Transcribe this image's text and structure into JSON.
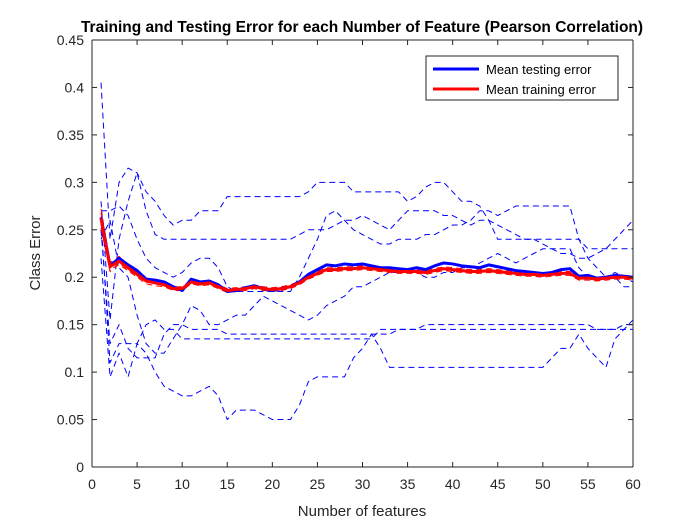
{
  "chart_data": {
    "type": "line",
    "title": "Training and Testing Error for each Number of Feature (Pearson Correlation)",
    "xlabel": "Number of features",
    "ylabel": "Class Error",
    "xlim": [
      0,
      60
    ],
    "ylim": [
      0,
      0.45
    ],
    "xticks": [
      0,
      5,
      10,
      15,
      20,
      25,
      30,
      35,
      40,
      45,
      50,
      55,
      60
    ],
    "yticks": [
      0,
      0.05,
      0.1,
      0.15,
      0.2,
      0.25,
      0.3,
      0.35,
      0.4,
      0.45
    ],
    "legend_position": "top-right",
    "grid": false,
    "colors": {
      "testing": "#0000ff",
      "training": "#ff0000"
    },
    "x": [
      1,
      2,
      3,
      4,
      5,
      6,
      7,
      8,
      9,
      10,
      11,
      12,
      13,
      14,
      15,
      16,
      17,
      18,
      19,
      20,
      21,
      22,
      23,
      24,
      25,
      26,
      27,
      28,
      29,
      30,
      31,
      32,
      33,
      34,
      35,
      36,
      37,
      38,
      39,
      40,
      41,
      42,
      43,
      44,
      45,
      46,
      47,
      48,
      49,
      50,
      51,
      52,
      53,
      54,
      55,
      56,
      57,
      58,
      59,
      60
    ],
    "series": [
      {
        "name": "Mean testing error",
        "style": "solid",
        "color": "#0000ff",
        "role": "mean",
        "values": [
          0.263,
          0.212,
          0.22,
          0.213,
          0.207,
          0.198,
          0.197,
          0.195,
          0.19,
          0.186,
          0.198,
          0.195,
          0.196,
          0.192,
          0.185,
          0.186,
          0.189,
          0.191,
          0.188,
          0.186,
          0.188,
          0.19,
          0.195,
          0.203,
          0.208,
          0.213,
          0.212,
          0.214,
          0.213,
          0.214,
          0.212,
          0.21,
          0.21,
          0.209,
          0.208,
          0.21,
          0.208,
          0.212,
          0.215,
          0.214,
          0.212,
          0.211,
          0.21,
          0.213,
          0.211,
          0.209,
          0.207,
          0.206,
          0.205,
          0.204,
          0.205,
          0.208,
          0.209,
          0.201,
          0.202,
          0.199,
          0.2,
          0.202,
          0.201,
          0.2
        ]
      },
      {
        "name": "Mean training error",
        "style": "solid",
        "color": "#ff0000",
        "role": "mean",
        "values": [
          0.262,
          0.211,
          0.217,
          0.21,
          0.203,
          0.196,
          0.194,
          0.192,
          0.188,
          0.188,
          0.195,
          0.193,
          0.194,
          0.19,
          0.186,
          0.187,
          0.188,
          0.19,
          0.188,
          0.187,
          0.188,
          0.19,
          0.194,
          0.2,
          0.204,
          0.208,
          0.208,
          0.209,
          0.209,
          0.21,
          0.209,
          0.208,
          0.207,
          0.206,
          0.206,
          0.206,
          0.205,
          0.207,
          0.209,
          0.208,
          0.207,
          0.206,
          0.206,
          0.207,
          0.206,
          0.205,
          0.204,
          0.203,
          0.203,
          0.202,
          0.203,
          0.204,
          0.204,
          0.199,
          0.199,
          0.198,
          0.199,
          0.2,
          0.2,
          0.199
        ]
      },
      {
        "style": "dashed",
        "color": "#0000ff",
        "role": "fold",
        "values": [
          0.405,
          0.24,
          0.3,
          0.315,
          0.31,
          0.29,
          0.28,
          0.265,
          0.255,
          0.26,
          0.26,
          0.27,
          0.27,
          0.27,
          0.285,
          0.285,
          0.285,
          0.285,
          0.285,
          0.285,
          0.285,
          0.285,
          0.285,
          0.29,
          0.3,
          0.3,
          0.3,
          0.3,
          0.29,
          0.29,
          0.29,
          0.29,
          0.29,
          0.29,
          0.28,
          0.285,
          0.295,
          0.3,
          0.3,
          0.29,
          0.28,
          0.28,
          0.275,
          0.26,
          0.24,
          0.24,
          0.24,
          0.24,
          0.24,
          0.24,
          0.24,
          0.24,
          0.24,
          0.24,
          0.23,
          0.23,
          0.23,
          0.23,
          0.23,
          0.23
        ]
      },
      {
        "style": "dashed",
        "color": "#0000ff",
        "role": "fold",
        "values": [
          0.26,
          0.11,
          0.13,
          0.13,
          0.13,
          0.15,
          0.155,
          0.145,
          0.145,
          0.135,
          0.135,
          0.135,
          0.135,
          0.135,
          0.135,
          0.135,
          0.135,
          0.135,
          0.135,
          0.135,
          0.135,
          0.135,
          0.135,
          0.135,
          0.135,
          0.135,
          0.135,
          0.135,
          0.135,
          0.135,
          0.135,
          0.145,
          0.145,
          0.145,
          0.145,
          0.145,
          0.145,
          0.145,
          0.145,
          0.145,
          0.145,
          0.145,
          0.145,
          0.145,
          0.145,
          0.145,
          0.145,
          0.145,
          0.145,
          0.145,
          0.145,
          0.145,
          0.145,
          0.145,
          0.145,
          0.145,
          0.145,
          0.145,
          0.145,
          0.145
        ]
      },
      {
        "style": "dashed",
        "color": "#0000ff",
        "role": "fold",
        "values": [
          0.22,
          0.095,
          0.12,
          0.095,
          0.13,
          0.12,
          0.1,
          0.085,
          0.08,
          0.075,
          0.075,
          0.08,
          0.085,
          0.075,
          0.05,
          0.06,
          0.06,
          0.06,
          0.055,
          0.05,
          0.05,
          0.05,
          0.065,
          0.09,
          0.095,
          0.095,
          0.095,
          0.095,
          0.115,
          0.125,
          0.14,
          0.125,
          0.105,
          0.105,
          0.105,
          0.105,
          0.105,
          0.105,
          0.105,
          0.105,
          0.105,
          0.105,
          0.105,
          0.105,
          0.105,
          0.105,
          0.105,
          0.105,
          0.105,
          0.105,
          0.115,
          0.125,
          0.125,
          0.14,
          0.125,
          0.115,
          0.105,
          0.135,
          0.145,
          0.155
        ]
      },
      {
        "style": "dashed",
        "color": "#0000ff",
        "role": "fold",
        "values": [
          0.28,
          0.155,
          0.24,
          0.28,
          0.31,
          0.27,
          0.245,
          0.24,
          0.24,
          0.24,
          0.24,
          0.24,
          0.24,
          0.24,
          0.24,
          0.24,
          0.24,
          0.24,
          0.24,
          0.24,
          0.24,
          0.24,
          0.245,
          0.25,
          0.25,
          0.25,
          0.255,
          0.26,
          0.26,
          0.265,
          0.26,
          0.255,
          0.25,
          0.26,
          0.27,
          0.27,
          0.27,
          0.27,
          0.265,
          0.265,
          0.26,
          0.255,
          0.26,
          0.26,
          0.255,
          0.25,
          0.245,
          0.24,
          0.24,
          0.235,
          0.23,
          0.225,
          0.225,
          0.22,
          0.22,
          0.225,
          0.23,
          0.24,
          0.25,
          0.26
        ]
      },
      {
        "style": "dashed",
        "color": "#0000ff",
        "role": "fold",
        "values": [
          0.27,
          0.27,
          0.275,
          0.265,
          0.24,
          0.22,
          0.21,
          0.205,
          0.2,
          0.205,
          0.215,
          0.22,
          0.22,
          0.21,
          0.19,
          0.185,
          0.185,
          0.185,
          0.185,
          0.185,
          0.185,
          0.185,
          0.2,
          0.22,
          0.24,
          0.265,
          0.27,
          0.26,
          0.25,
          0.245,
          0.24,
          0.235,
          0.235,
          0.24,
          0.24,
          0.24,
          0.245,
          0.245,
          0.25,
          0.255,
          0.255,
          0.26,
          0.27,
          0.27,
          0.265,
          0.27,
          0.275,
          0.275,
          0.275,
          0.275,
          0.275,
          0.275,
          0.275,
          0.24,
          0.22,
          0.21,
          0.2,
          0.2,
          0.19,
          0.19
        ]
      },
      {
        "style": "dashed",
        "color": "#0000ff",
        "role": "fold",
        "values": [
          0.24,
          0.26,
          0.21,
          0.2,
          0.16,
          0.13,
          0.12,
          0.12,
          0.135,
          0.15,
          0.17,
          0.165,
          0.15,
          0.15,
          0.155,
          0.16,
          0.16,
          0.17,
          0.18,
          0.175,
          0.17,
          0.165,
          0.16,
          0.155,
          0.16,
          0.17,
          0.175,
          0.18,
          0.19,
          0.19,
          0.195,
          0.2,
          0.205,
          0.205,
          0.205,
          0.205,
          0.2,
          0.2,
          0.205,
          0.205,
          0.21,
          0.21,
          0.215,
          0.22,
          0.225,
          0.22,
          0.215,
          0.22,
          0.225,
          0.23,
          0.23,
          0.23,
          0.23,
          0.21,
          0.2,
          0.2,
          0.2,
          0.205,
          0.2,
          0.195
        ]
      },
      {
        "style": "dashed",
        "color": "#0000ff",
        "role": "fold",
        "values": [
          0.25,
          0.13,
          0.15,
          0.125,
          0.115,
          0.115,
          0.115,
          0.14,
          0.15,
          0.15,
          0.145,
          0.145,
          0.145,
          0.145,
          0.14,
          0.14,
          0.14,
          0.14,
          0.14,
          0.14,
          0.14,
          0.14,
          0.14,
          0.14,
          0.14,
          0.14,
          0.14,
          0.14,
          0.14,
          0.14,
          0.14,
          0.14,
          0.14,
          0.145,
          0.145,
          0.145,
          0.15,
          0.15,
          0.15,
          0.15,
          0.15,
          0.15,
          0.15,
          0.15,
          0.15,
          0.15,
          0.15,
          0.15,
          0.15,
          0.15,
          0.15,
          0.15,
          0.15,
          0.15,
          0.15,
          0.145,
          0.145,
          0.145,
          0.15,
          0.15
        ]
      },
      {
        "style": "dashed",
        "color": "#ff0000",
        "role": "fold",
        "values": [
          0.268,
          0.214,
          0.222,
          0.213,
          0.205,
          0.198,
          0.196,
          0.194,
          0.19,
          0.19,
          0.197,
          0.195,
          0.196,
          0.192,
          0.188,
          0.189,
          0.19,
          0.192,
          0.19,
          0.189,
          0.19,
          0.192,
          0.196,
          0.202,
          0.206,
          0.21,
          0.21,
          0.211,
          0.211,
          0.212,
          0.211,
          0.21,
          0.209,
          0.208,
          0.208,
          0.208,
          0.207,
          0.209,
          0.211,
          0.21,
          0.209,
          0.208,
          0.208,
          0.209,
          0.208,
          0.207,
          0.206,
          0.205,
          0.205,
          0.204,
          0.205,
          0.206,
          0.206,
          0.201,
          0.201,
          0.2,
          0.201,
          0.202,
          0.202,
          0.201
        ]
      },
      {
        "style": "dashed",
        "color": "#ff0000",
        "role": "fold",
        "values": [
          0.256,
          0.208,
          0.213,
          0.207,
          0.2,
          0.193,
          0.191,
          0.19,
          0.186,
          0.186,
          0.193,
          0.191,
          0.192,
          0.188,
          0.184,
          0.185,
          0.186,
          0.188,
          0.186,
          0.185,
          0.186,
          0.188,
          0.192,
          0.198,
          0.202,
          0.206,
          0.206,
          0.207,
          0.207,
          0.208,
          0.207,
          0.206,
          0.205,
          0.204,
          0.204,
          0.204,
          0.203,
          0.205,
          0.207,
          0.206,
          0.205,
          0.204,
          0.204,
          0.205,
          0.204,
          0.203,
          0.202,
          0.201,
          0.201,
          0.2,
          0.201,
          0.202,
          0.202,
          0.197,
          0.197,
          0.196,
          0.197,
          0.198,
          0.198,
          0.197
        ]
      },
      {
        "style": "dashed",
        "color": "#ff0000",
        "role": "fold",
        "values": [
          0.272,
          0.216,
          0.219,
          0.212,
          0.206,
          0.197,
          0.195,
          0.191,
          0.187,
          0.186,
          0.196,
          0.194,
          0.193,
          0.19,
          0.187,
          0.188,
          0.187,
          0.191,
          0.187,
          0.186,
          0.187,
          0.191,
          0.195,
          0.199,
          0.205,
          0.209,
          0.207,
          0.21,
          0.21,
          0.209,
          0.21,
          0.209,
          0.206,
          0.207,
          0.205,
          0.207,
          0.206,
          0.208,
          0.21,
          0.207,
          0.208,
          0.207,
          0.205,
          0.208,
          0.207,
          0.206,
          0.203,
          0.204,
          0.202,
          0.203,
          0.202,
          0.205,
          0.203,
          0.2,
          0.198,
          0.199,
          0.2,
          0.199,
          0.201,
          0.2
        ]
      },
      {
        "style": "dashed",
        "color": "#ff0000",
        "role": "fold",
        "values": [
          0.252,
          0.206,
          0.215,
          0.208,
          0.201,
          0.195,
          0.193,
          0.193,
          0.189,
          0.19,
          0.194,
          0.192,
          0.195,
          0.191,
          0.185,
          0.186,
          0.189,
          0.189,
          0.189,
          0.188,
          0.189,
          0.189,
          0.193,
          0.201,
          0.203,
          0.207,
          0.209,
          0.208,
          0.208,
          0.211,
          0.208,
          0.207,
          0.208,
          0.205,
          0.207,
          0.205,
          0.204,
          0.206,
          0.208,
          0.209,
          0.206,
          0.205,
          0.207,
          0.206,
          0.205,
          0.204,
          0.205,
          0.202,
          0.204,
          0.201,
          0.204,
          0.203,
          0.205,
          0.198,
          0.2,
          0.197,
          0.198,
          0.201,
          0.199,
          0.198
        ]
      },
      {
        "style": "dashed",
        "color": "#ff0000",
        "role": "fold",
        "values": [
          0.264,
          0.21,
          0.218,
          0.211,
          0.204,
          0.196,
          0.194,
          0.192,
          0.188,
          0.188,
          0.195,
          0.193,
          0.194,
          0.19,
          0.186,
          0.187,
          0.188,
          0.19,
          0.188,
          0.187,
          0.188,
          0.19,
          0.194,
          0.2,
          0.204,
          0.208,
          0.208,
          0.209,
          0.209,
          0.21,
          0.209,
          0.208,
          0.207,
          0.206,
          0.206,
          0.206,
          0.205,
          0.207,
          0.209,
          0.208,
          0.207,
          0.206,
          0.206,
          0.207,
          0.206,
          0.205,
          0.204,
          0.203,
          0.203,
          0.202,
          0.203,
          0.204,
          0.204,
          0.199,
          0.199,
          0.198,
          0.199,
          0.2,
          0.2,
          0.199
        ]
      }
    ]
  }
}
